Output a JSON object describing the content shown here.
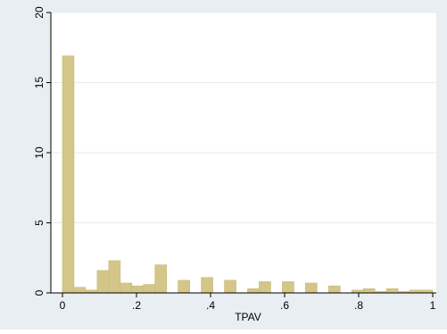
{
  "chart_data": {
    "type": "bar",
    "title": "",
    "xlabel": "TPAV",
    "ylabel": "",
    "xlim": [
      0,
      1
    ],
    "ylim": [
      0,
      20
    ],
    "grid": true,
    "legend": "none",
    "bin_width": 0.03125,
    "x_ticks": [
      {
        "value": 0,
        "label": "0"
      },
      {
        "value": 0.2,
        "label": ".2"
      },
      {
        "value": 0.4,
        "label": ".4"
      },
      {
        "value": 0.6,
        "label": ".6"
      },
      {
        "value": 0.8,
        "label": ".8"
      },
      {
        "value": 1,
        "label": "1"
      }
    ],
    "y_ticks": [
      {
        "value": 0,
        "label": "0"
      },
      {
        "value": 5,
        "label": "5"
      },
      {
        "value": 10,
        "label": "10"
      },
      {
        "value": 15,
        "label": "15"
      },
      {
        "value": 20,
        "label": "20"
      }
    ],
    "bins": [
      {
        "x": 0.0,
        "value": 16.9
      },
      {
        "x": 0.03125,
        "value": 0.4
      },
      {
        "x": 0.0625,
        "value": 0.2
      },
      {
        "x": 0.09375,
        "value": 1.6
      },
      {
        "x": 0.125,
        "value": 2.3
      },
      {
        "x": 0.15625,
        "value": 0.7
      },
      {
        "x": 0.1875,
        "value": 0.5
      },
      {
        "x": 0.21875,
        "value": 0.6
      },
      {
        "x": 0.25,
        "value": 2.0
      },
      {
        "x": 0.3125,
        "value": 0.9
      },
      {
        "x": 0.375,
        "value": 1.1
      },
      {
        "x": 0.4375,
        "value": 0.9
      },
      {
        "x": 0.5,
        "value": 0.3
      },
      {
        "x": 0.53125,
        "value": 0.8
      },
      {
        "x": 0.59375,
        "value": 0.8
      },
      {
        "x": 0.65625,
        "value": 0.7
      },
      {
        "x": 0.71875,
        "value": 0.5
      },
      {
        "x": 0.78125,
        "value": 0.2
      },
      {
        "x": 0.8125,
        "value": 0.3
      },
      {
        "x": 0.84375,
        "value": 0.1
      },
      {
        "x": 0.875,
        "value": 0.3
      },
      {
        "x": 0.90625,
        "value": 0.1
      },
      {
        "x": 0.9375,
        "value": 0.2
      },
      {
        "x": 0.96875,
        "value": 0.2
      }
    ],
    "colors": {
      "outer_background": "#e8eef2",
      "plot_background": "#ffffff",
      "bar_fill": "#d4c688",
      "bar_stroke": "#c6b774",
      "grid": "#e6ebee",
      "axis": "#000000"
    }
  }
}
